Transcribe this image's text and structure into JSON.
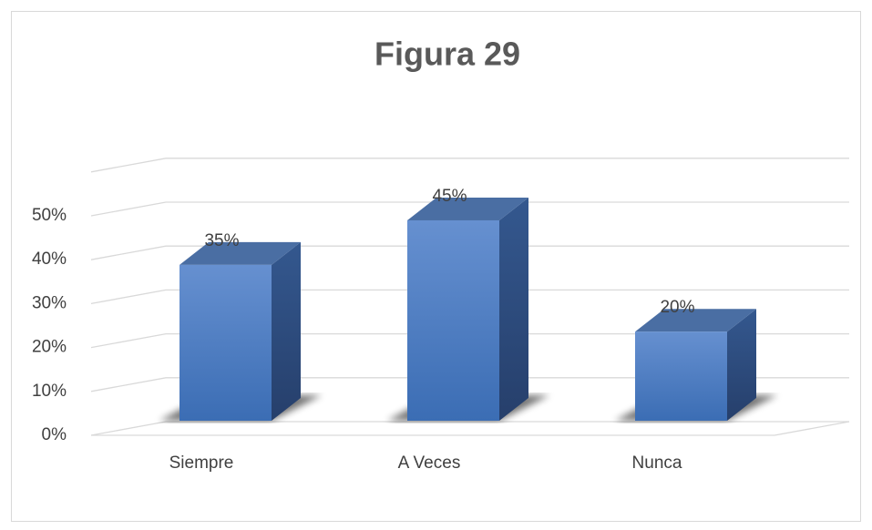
{
  "chart_data": {
    "type": "bar3d",
    "title": "Figura 29",
    "categories": [
      "Siempre",
      "A Veces",
      "Nunca"
    ],
    "values": [
      35,
      45,
      20
    ],
    "value_labels": [
      "35%",
      "45%",
      "20%"
    ],
    "color": "#4a7cc3",
    "ylim": [
      0,
      60
    ],
    "yticks": [
      {
        "value": 0,
        "label": "0%"
      },
      {
        "value": 10,
        "label": "10%"
      },
      {
        "value": 20,
        "label": "20%"
      },
      {
        "value": 30,
        "label": "30%"
      },
      {
        "value": 40,
        "label": "40%"
      },
      {
        "value": 50,
        "label": "50%"
      }
    ],
    "grid": true
  }
}
